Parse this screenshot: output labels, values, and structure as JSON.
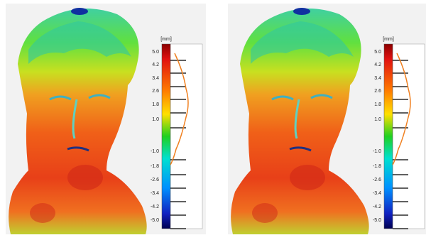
{
  "panels": [
    {
      "unit": "[mm]",
      "scale_labels": [
        "5.0",
        "4.2",
        "3.4",
        "2.6",
        "1.8",
        "1.0",
        "-1.0",
        "-1.8",
        "-2.6",
        "-3.4",
        "-4.2",
        "-5.0"
      ]
    },
    {
      "unit": "[mm]",
      "scale_labels": [
        "5.0",
        "4.2",
        "3.4",
        "2.6",
        "1.8",
        "1.0",
        "-1.0",
        "-1.8",
        "-2.6",
        "-3.4",
        "-4.2",
        "-5.0"
      ]
    }
  ]
}
